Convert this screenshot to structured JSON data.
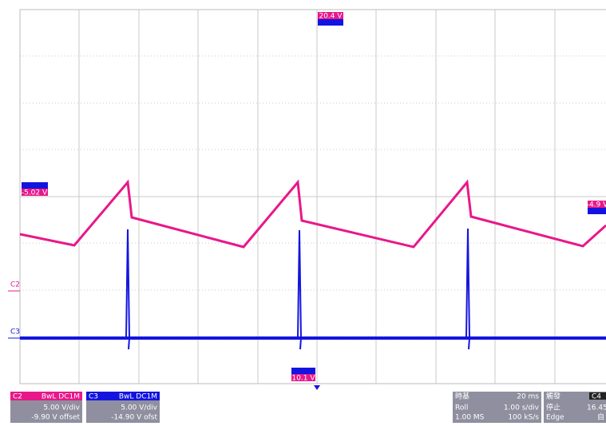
{
  "screen": {
    "top_marker": "20.4 V",
    "bottom_marker": "10.1 V",
    "left_marker": "-5.02 V",
    "right_marker": "-4.9 V",
    "channel_labels": [
      "C2",
      "C3"
    ]
  },
  "panels": {
    "c2": {
      "name": "C2",
      "flags": "BwL DC1M",
      "scale": "5.00 V/div",
      "offset": "-9.90 V offset"
    },
    "c3": {
      "name": "C3",
      "flags": "BwL DC1M",
      "scale": "5.00 V/div",
      "offset": "-14.90 V ofst"
    },
    "timebase": {
      "title": "時基",
      "delay": "20 ms",
      "mode": "Roll",
      "scale": "1.00 s/div",
      "points": "1.00 MS",
      "rate": "100 kS/s"
    },
    "trigger": {
      "title": "觸發",
      "source": "C4",
      "state": "停止",
      "level": "16.45",
      "type": "Edge",
      "mode": "自"
    }
  }
}
